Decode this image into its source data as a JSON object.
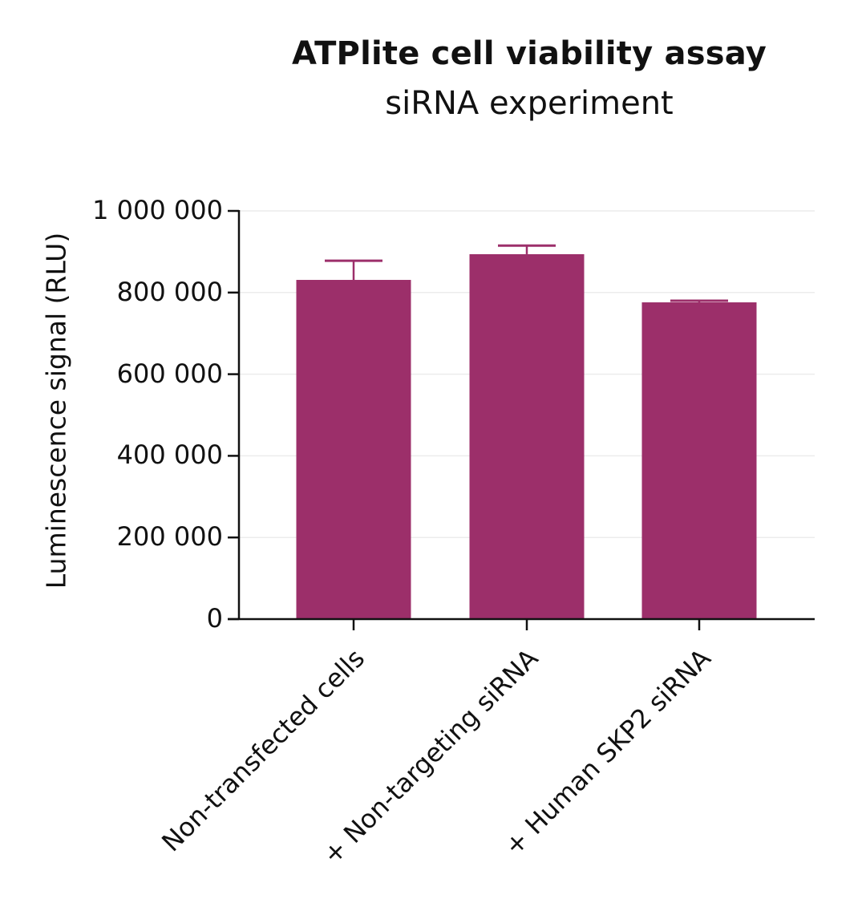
{
  "chart": {
    "title": "ATPlite cell viability assay",
    "subtitle": "siRNA experiment",
    "ylabel": "Luminescence signal (RLU)",
    "bar_color": "#9C2F6A",
    "y_ticks": [
      "1 000 000",
      "800 000",
      "600 000",
      "400 000",
      "200 000",
      "0"
    ],
    "x_labels": [
      "Non-transfected cells",
      "+ Non-targeting siRNA",
      "+ Human SKP2 siRNA"
    ]
  },
  "chart_data": {
    "type": "bar",
    "title": "ATPlite cell viability assay",
    "subtitle": "siRNA experiment",
    "xlabel": "",
    "ylabel": "Luminescence signal (RLU)",
    "categories": [
      "Non-transfected cells",
      "+ Non-targeting siRNA",
      "+ Human SKP2 siRNA"
    ],
    "values": [
      831000,
      894000,
      776000
    ],
    "error_upper": [
      47000,
      21000,
      4000
    ],
    "ylim": [
      0,
      1000000
    ],
    "y_ticks": [
      0,
      200000,
      400000,
      600000,
      800000,
      1000000
    ],
    "grid": "horizontal light gridlines",
    "legend": "none",
    "bar_color": "#9C2F6A"
  }
}
